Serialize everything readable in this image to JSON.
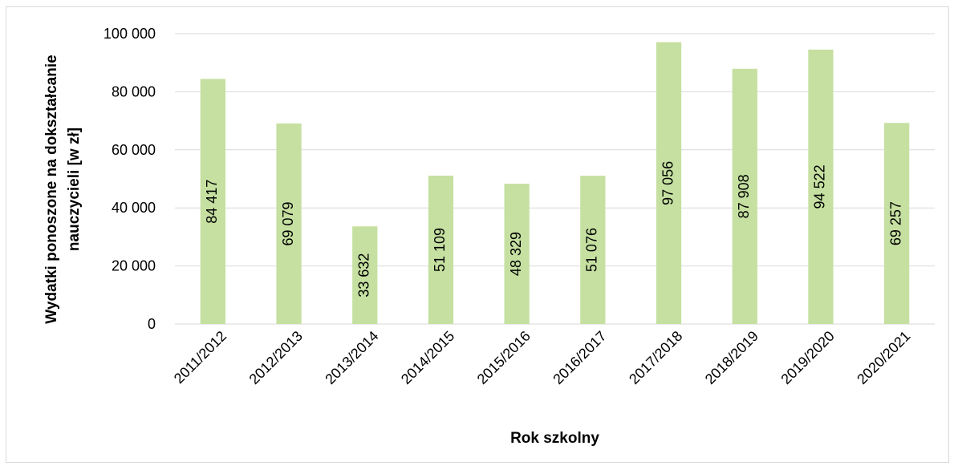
{
  "chart_data": {
    "type": "bar",
    "categories": [
      "2011/2012",
      "2012/2013",
      "2013/2014",
      "2014/2015",
      "2015/2016",
      "2016/2017",
      "2017/2018",
      "2018/2019",
      "2019/2020",
      "2020/2021"
    ],
    "values": [
      84417,
      69079,
      33632,
      51109,
      48329,
      51076,
      97056,
      87908,
      94522,
      69257
    ],
    "data_labels": [
      "84 417",
      "69 079",
      "33 632",
      "51 109",
      "48 329",
      "51 076",
      "97 056",
      "87 908",
      "94 522",
      "69 257"
    ],
    "y_ticks": [
      0,
      20000,
      40000,
      60000,
      80000,
      100000
    ],
    "y_tick_labels": [
      "0",
      "20 000",
      "40 000",
      "60 000",
      "80 000",
      "100 000"
    ],
    "ylim": [
      0,
      100000
    ],
    "xlabel": "Rok szkolny",
    "ylabel_lines": [
      "Wydatki ponoszone na dokształcanie",
      "nauczycieli [w zł]"
    ],
    "grid": true,
    "legend": "none",
    "bar_color": "#c5e0a0",
    "grid_color": "#d9d9d9"
  }
}
